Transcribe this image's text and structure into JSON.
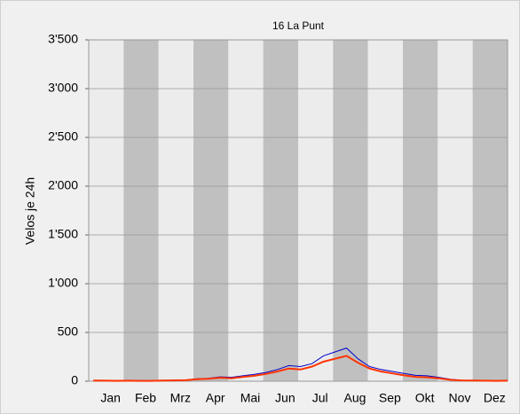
{
  "chart_data": {
    "type": "line",
    "title": "16 La Punt",
    "ylabel": "Velos je 24h",
    "categories": [
      "Jan",
      "Feb",
      "Mrz",
      "Apr",
      "Mai",
      "Jun",
      "Jul",
      "Aug",
      "Sep",
      "Okt",
      "Nov",
      "Dez"
    ],
    "band_colors": [
      "#ececec",
      "#c0c0c0"
    ],
    "x": [
      5,
      15,
      25,
      35,
      45,
      55,
      65,
      75,
      85,
      95,
      105,
      115,
      125,
      135,
      145,
      155,
      165,
      175,
      185,
      195,
      205,
      215,
      225,
      235,
      245,
      255,
      265,
      275,
      285,
      295,
      305,
      315,
      325,
      335,
      345,
      355,
      365
    ],
    "xlim": [
      1,
      365
    ],
    "series": [
      {
        "name": "blue",
        "color": "#0000cc",
        "values": [
          8,
          6,
          5,
          7,
          6,
          5,
          8,
          10,
          12,
          25,
          30,
          45,
          40,
          55,
          70,
          90,
          120,
          160,
          150,
          180,
          260,
          300,
          340,
          230,
          150,
          120,
          100,
          80,
          60,
          55,
          40,
          20,
          10,
          8,
          6,
          5,
          6
        ]
      },
      {
        "name": "red",
        "color": "#ff3300",
        "values": [
          6,
          5,
          4,
          5,
          4,
          4,
          6,
          8,
          10,
          20,
          25,
          35,
          30,
          45,
          55,
          75,
          100,
          130,
          120,
          150,
          200,
          230,
          260,
          190,
          130,
          100,
          80,
          60,
          45,
          40,
          30,
          15,
          8,
          6,
          5,
          4,
          5
        ]
      }
    ],
    "ylim": [
      0,
      3500
    ],
    "yticks": [
      0,
      500,
      {
        "value": 1000,
        "label": "1'000"
      },
      {
        "value": 1500,
        "label": "1'500"
      },
      {
        "value": 2000,
        "label": "2'000"
      },
      {
        "value": 2500,
        "label": "2'500"
      },
      {
        "value": 3000,
        "label": "3'000"
      },
      {
        "value": 3500,
        "label": "3'500"
      }
    ],
    "grid": true
  }
}
